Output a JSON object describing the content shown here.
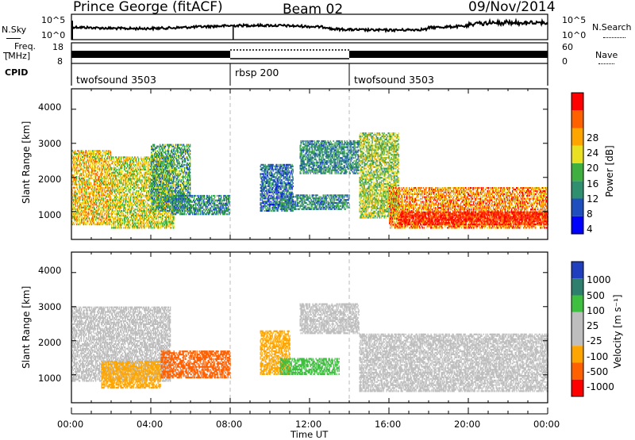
{
  "header": {
    "station": "Prince George (fitACF)",
    "beam": "Beam 02",
    "date": "09/Nov/2014"
  },
  "status_panels": {
    "nsky_label": "N.Sky",
    "nsky_ticks": [
      "10^5",
      "10^0"
    ],
    "nsearch_label": "N.Search",
    "nsearch_ticks": [
      "10^5",
      "10^0"
    ],
    "freq_label_1": "Freq.",
    "freq_label_2": "[MHz]",
    "freq_ticks": [
      "18",
      "8"
    ],
    "nave_label": "Nave",
    "nave_ticks": [
      "60",
      "0"
    ],
    "cpid_label": "CPID",
    "modes": [
      {
        "name": "twofsound 3503",
        "start_hour": 0,
        "end_hour": 8.0
      },
      {
        "name": "rbsp 200",
        "start_hour": 8.0,
        "end_hour": 14.0
      },
      {
        "name": "twofsound 3503",
        "start_hour": 14.0,
        "end_hour": 24.0
      }
    ]
  },
  "power_panel": {
    "ylabel": "Slant Range [km]",
    "yticks": [
      "4000",
      "3000",
      "2000",
      "1000"
    ],
    "colorbar_label": "Power [dB]",
    "colorbar_ticks": [
      "28",
      "24",
      "20",
      "16",
      "12",
      "8",
      "4"
    ],
    "colors": [
      "#0000ff",
      "#1f4fbf",
      "#2f8f6f",
      "#3fb03f",
      "#e8e020",
      "#ffa500",
      "#ff6000",
      "#ff0000"
    ]
  },
  "velocity_panel": {
    "ylabel": "Slant Range [km]",
    "yticks": [
      "4000",
      "3000",
      "2000",
      "1000"
    ],
    "colorbar_label": "Velocity [m s⁻¹]",
    "colorbar_ticks": [
      "1000",
      "500",
      "100",
      "25",
      "-25",
      "-100",
      "-500",
      "-1000"
    ],
    "colors": [
      "#1f3fbf",
      "#2f7f6f",
      "#3fbf3f",
      "#bebebe",
      "#bebebe",
      "#ffa500",
      "#ff6000",
      "#ff0000"
    ]
  },
  "x_axis": {
    "label": "Time UT",
    "ticks": [
      "00:00",
      "04:00",
      "08:00",
      "12:00",
      "16:00",
      "20:00",
      "00:00"
    ]
  },
  "chart_data": {
    "type": "heatmap",
    "x_range_hours": [
      0,
      24
    ],
    "y_range_km": [
      180,
      4600
    ],
    "mode_boundaries_hours": [
      8.0,
      14.0
    ],
    "power_echo_regions": [
      {
        "t_start": 0.0,
        "t_end": 2.0,
        "r_start": 600,
        "r_end": 2800,
        "power_db": 20
      },
      {
        "t_start": 2.0,
        "t_end": 5.2,
        "r_start": 500,
        "r_end": 2600,
        "power_db": 18
      },
      {
        "t_start": 4.0,
        "t_end": 6.0,
        "r_start": 1000,
        "r_end": 3000,
        "power_db": 12
      },
      {
        "t_start": 5.0,
        "t_end": 8.0,
        "r_start": 900,
        "r_end": 1500,
        "power_db": 10
      },
      {
        "t_start": 9.5,
        "t_end": 11.2,
        "r_start": 1000,
        "r_end": 2400,
        "power_db": 8
      },
      {
        "t_start": 10.5,
        "t_end": 14.0,
        "r_start": 1050,
        "r_end": 1500,
        "power_db": 10
      },
      {
        "t_start": 11.5,
        "t_end": 14.5,
        "r_start": 2100,
        "r_end": 3100,
        "power_db": 10
      },
      {
        "t_start": 14.5,
        "t_end": 16.5,
        "r_start": 800,
        "r_end": 3300,
        "power_db": 16
      },
      {
        "t_start": 16.0,
        "t_end": 24.0,
        "r_start": 500,
        "r_end": 1700,
        "power_db": 24
      },
      {
        "t_start": 16.5,
        "t_end": 24.0,
        "r_start": 600,
        "r_end": 1000,
        "power_db": 30
      }
    ],
    "velocity_echo_regions": [
      {
        "t_start": 0.0,
        "t_end": 5.0,
        "r_start": 800,
        "r_end": 3000,
        "velocity": 0
      },
      {
        "t_start": 1.5,
        "t_end": 4.5,
        "r_start": 600,
        "r_end": 1400,
        "velocity": -150
      },
      {
        "t_start": 4.5,
        "t_end": 8.0,
        "r_start": 900,
        "r_end": 1700,
        "velocity": -450
      },
      {
        "t_start": 9.5,
        "t_end": 11.0,
        "r_start": 1000,
        "r_end": 2300,
        "velocity": -200
      },
      {
        "t_start": 10.5,
        "t_end": 13.5,
        "r_start": 1000,
        "r_end": 1500,
        "velocity": 150
      },
      {
        "t_start": 11.5,
        "t_end": 14.5,
        "r_start": 2200,
        "r_end": 3100,
        "velocity": 0
      },
      {
        "t_start": 14.5,
        "t_end": 24.0,
        "r_start": 500,
        "r_end": 2200,
        "velocity": 0
      }
    ]
  }
}
